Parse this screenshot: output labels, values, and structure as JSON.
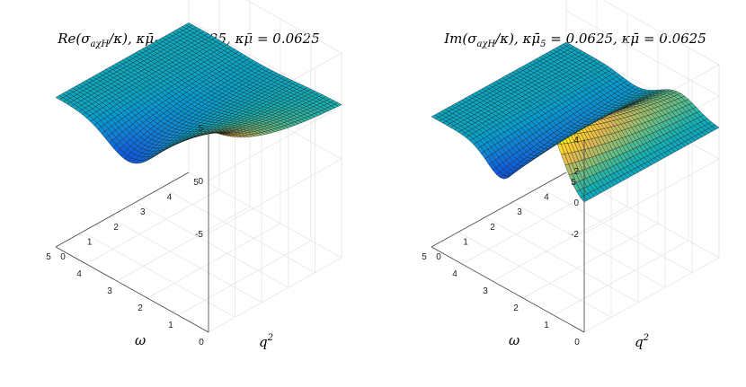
{
  "chart_data": [
    {
      "type": "surface",
      "title": "Re(σ_{aχH}/κ),  κμ̄₅ = 0.0625,  κμ̄ = 0.0625",
      "title_parts": {
        "fn": "Re",
        "arg": "(σ",
        "sub": "aχH",
        "rest": "/κ),  κμ̄",
        "s5": "5",
        "eq1": " = 0.0625,  κμ̄ = 0.0625"
      },
      "xlabel": "ω",
      "ylabel_base": "q",
      "ylabel_exp": "2",
      "xlim": [
        0,
        5
      ],
      "ylim": [
        0,
        5
      ],
      "zlim": [
        -5,
        5
      ],
      "xticks": [
        "0",
        "1",
        "2",
        "3",
        "4",
        "5"
      ],
      "yticks": [
        "0",
        "1",
        "2",
        "3",
        "4",
        "5"
      ],
      "zticks": [
        "-5",
        "0",
        "5"
      ],
      "colormap": "parula",
      "grid": true,
      "surface_samples": [
        {
          "omega": 0,
          "q2": 0,
          "z": 3.8
        },
        {
          "omega": 0,
          "q2": 5,
          "z": -0.1
        },
        {
          "omega": 2.5,
          "q2": 0,
          "z": -1.5
        },
        {
          "omega": 5,
          "q2": 0,
          "z": -0.2
        },
        {
          "omega": 5,
          "q2": 5,
          "z": 0.0
        }
      ]
    },
    {
      "type": "surface",
      "title": "Im(σ_{aχH}/κ),  κμ̄₅ = 0.0625,  κμ̄ = 0.0625",
      "title_parts": {
        "fn": "Im",
        "arg": "(σ",
        "sub": "aχH",
        "rest": "/κ),  κμ̄",
        "s5": "5",
        "eq1": " = 0.0625,  κμ̄ = 0.0625"
      },
      "xlabel": "ω",
      "ylabel_base": "q",
      "ylabel_exp": "2",
      "xlim": [
        0,
        5
      ],
      "ylim": [
        0,
        5
      ],
      "zlim": [
        -2,
        4
      ],
      "xticks": [
        "0",
        "1",
        "2",
        "3",
        "4",
        "5"
      ],
      "yticks": [
        "0",
        "1",
        "2",
        "3",
        "4",
        "5"
      ],
      "zticks": [
        "-2",
        "0",
        "2",
        "4"
      ],
      "colormap": "parula",
      "grid": true,
      "surface_samples": [
        {
          "omega": 0,
          "q2": 0,
          "z": 0.0
        },
        {
          "omega": 1.0,
          "q2": 0,
          "z": 2.6
        },
        {
          "omega": 2.5,
          "q2": 0,
          "z": -1.5
        },
        {
          "omega": 5,
          "q2": 0,
          "z": -0.3
        },
        {
          "omega": 5,
          "q2": 5,
          "z": 0.0
        }
      ]
    }
  ]
}
